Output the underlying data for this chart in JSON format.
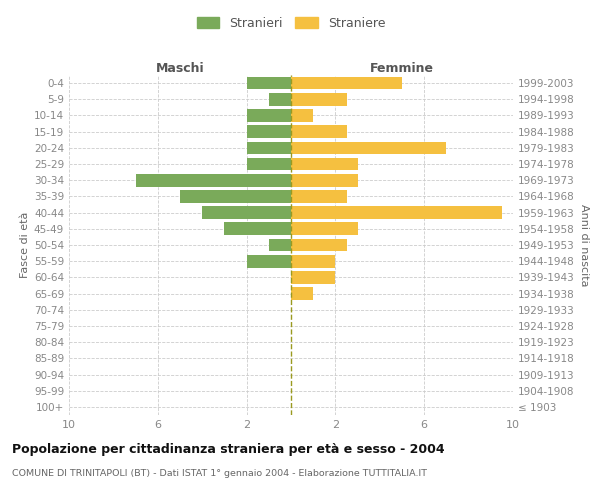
{
  "age_groups": [
    "100+",
    "95-99",
    "90-94",
    "85-89",
    "80-84",
    "75-79",
    "70-74",
    "65-69",
    "60-64",
    "55-59",
    "50-54",
    "45-49",
    "40-44",
    "35-39",
    "30-34",
    "25-29",
    "20-24",
    "15-19",
    "10-14",
    "5-9",
    "0-4"
  ],
  "birth_years": [
    "≤ 1903",
    "1904-1908",
    "1909-1913",
    "1914-1918",
    "1919-1923",
    "1924-1928",
    "1929-1933",
    "1934-1938",
    "1939-1943",
    "1944-1948",
    "1949-1953",
    "1954-1958",
    "1959-1963",
    "1964-1968",
    "1969-1973",
    "1974-1978",
    "1979-1983",
    "1984-1988",
    "1989-1993",
    "1994-1998",
    "1999-2003"
  ],
  "maschi": [
    0,
    0,
    0,
    0,
    0,
    0,
    0,
    0,
    0,
    2,
    1,
    3,
    4,
    5,
    7,
    2,
    2,
    2,
    2,
    1,
    2
  ],
  "femmine": [
    0,
    0,
    0,
    0,
    0,
    0,
    0,
    1,
    2,
    2,
    2.5,
    3,
    9.5,
    2.5,
    3,
    3,
    7,
    2.5,
    1,
    2.5,
    5
  ],
  "male_color": "#7aaa5a",
  "female_color": "#f5c040",
  "center_line_color": "#9a9a20",
  "grid_color": "#cccccc",
  "bg_color": "#ffffff",
  "title": "Popolazione per cittadinanza straniera per età e sesso - 2004",
  "subtitle": "COMUNE DI TRINITAPOLI (BT) - Dati ISTAT 1° gennaio 2004 - Elaborazione TUTTITALIA.IT",
  "ylabel_left": "Fasce di età",
  "ylabel_right": "Anni di nascita",
  "label_maschi": "Maschi",
  "label_femmine": "Femmine",
  "legend_male": "Stranieri",
  "legend_female": "Straniere",
  "xlim": 10,
  "bar_height": 0.78
}
